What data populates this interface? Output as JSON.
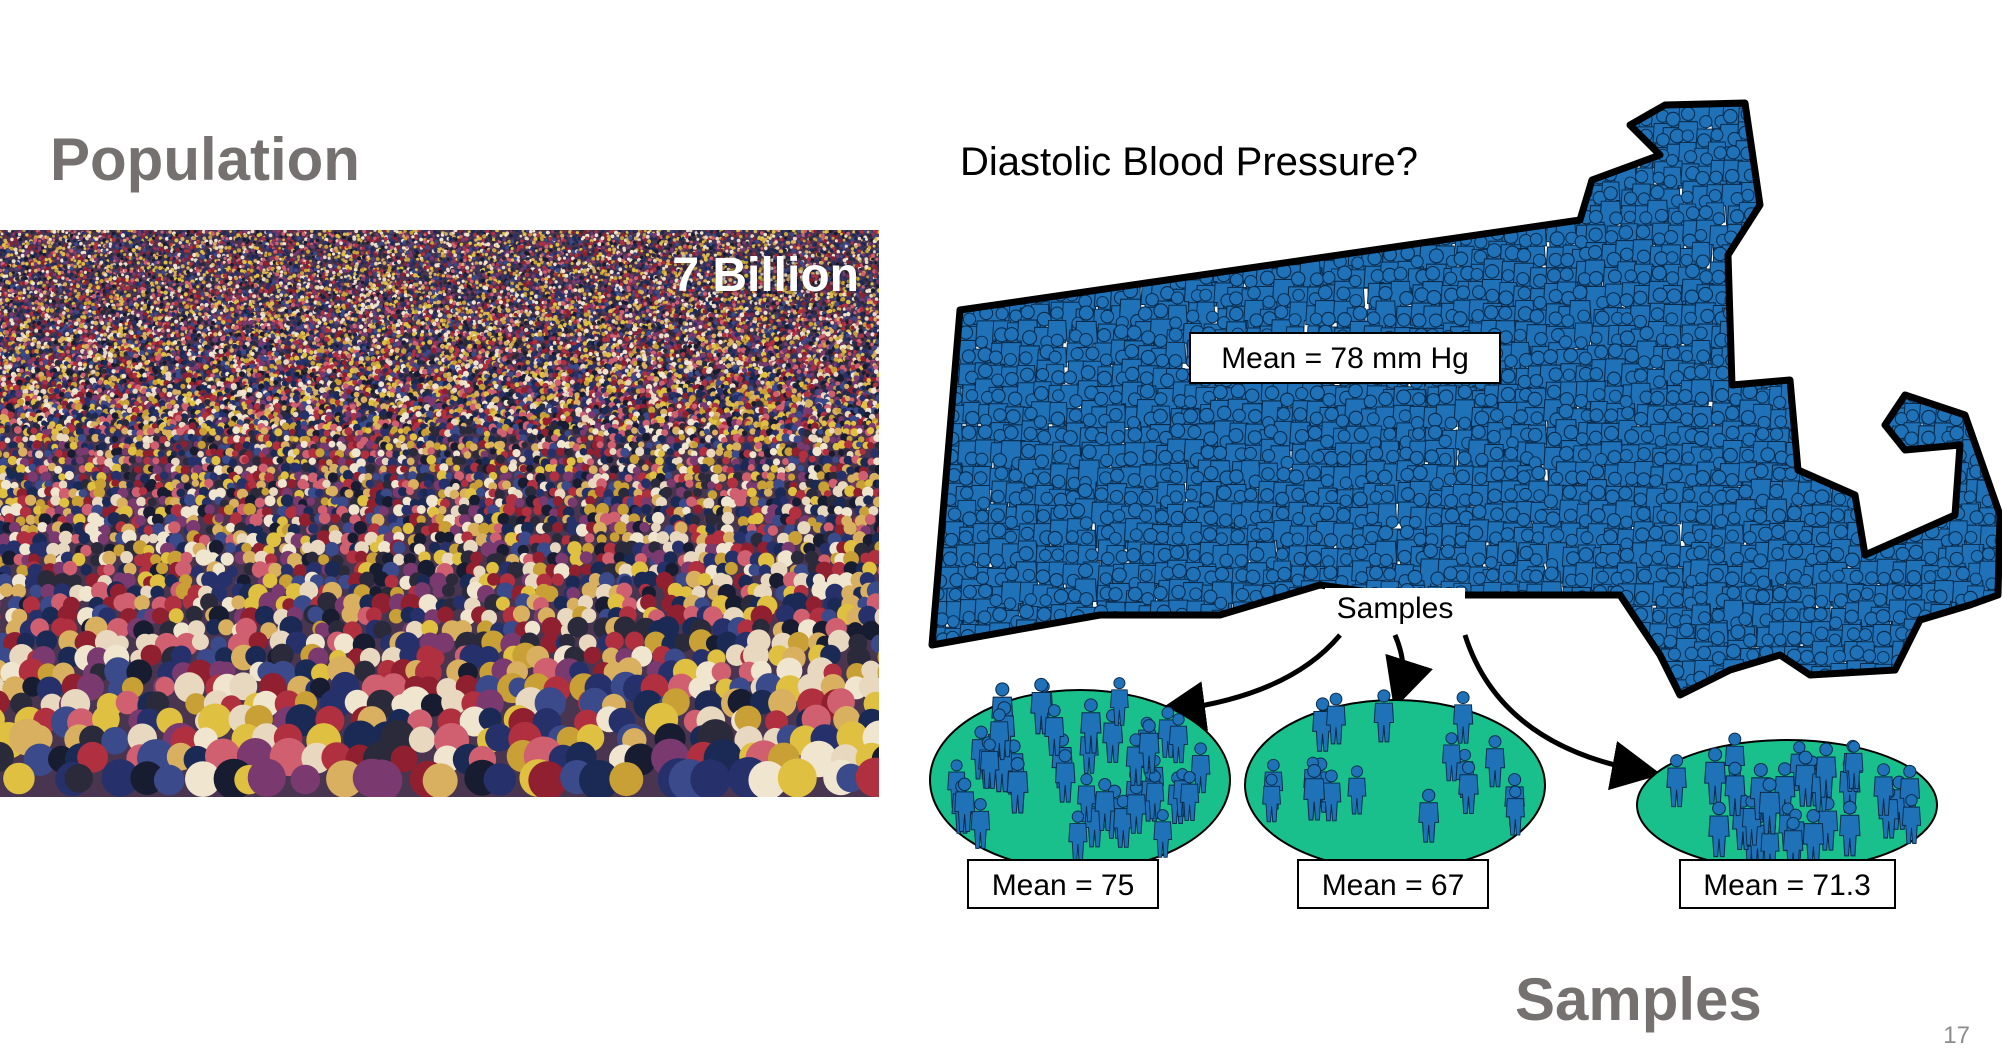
{
  "slide": {
    "heading_population": "Population",
    "heading_samples": "Samples",
    "page_number": "17"
  },
  "crowd_photo": {
    "overlay_text": "7 Billion",
    "depicts": "dense-stadium-crowd"
  },
  "diagram": {
    "title": "Diastolic Blood Pressure?",
    "population_label": "Mean = 78 mm Hg",
    "samples_label": "Samples",
    "samples": [
      {
        "label": "Mean = 75"
      },
      {
        "label": "Mean = 67"
      },
      {
        "label": "Mean = 71.3"
      }
    ],
    "colors": {
      "person": "#1f72b8",
      "person_outline": "#0a2a4a",
      "sample_fill": "#19c08b",
      "map_outline": "#000000"
    }
  }
}
